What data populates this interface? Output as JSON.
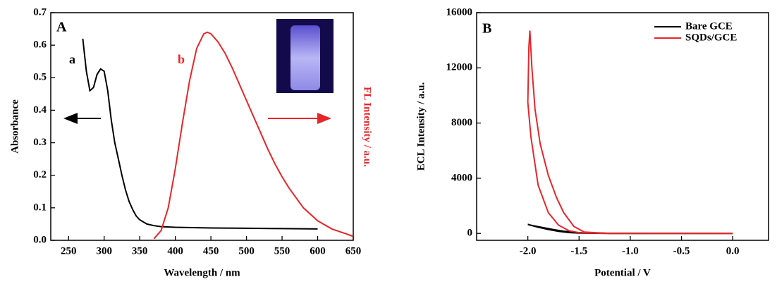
{
  "chart_data": [
    {
      "type": "line",
      "xlabel": "Wavelength / nm",
      "ylabel": "Absorbance",
      "y2label": "FL Intensity / a.u.",
      "annotations": [
        "A",
        "a",
        "b"
      ],
      "xlim": [
        225,
        650
      ],
      "ylim": [
        0,
        0.7
      ],
      "xticks": [
        250,
        300,
        350,
        400,
        450,
        500,
        550,
        600,
        650
      ],
      "yticks": [
        {
          "value": 0,
          "label": "0.0"
        },
        0.1,
        0.2,
        0.3,
        0.4,
        0.5,
        0.6,
        0.7
      ],
      "series": [
        {
          "color": "#000000",
          "x": [
            270,
            275,
            280,
            285,
            290,
            295,
            300,
            305,
            310,
            315,
            320,
            325,
            330,
            335,
            340,
            345,
            350,
            360,
            370,
            380,
            400,
            450,
            500,
            550,
            600
          ],
          "values": [
            0.62,
            0.52,
            0.46,
            0.47,
            0.51,
            0.527,
            0.52,
            0.46,
            0.37,
            0.3,
            0.25,
            0.2,
            0.155,
            0.12,
            0.095,
            0.075,
            0.063,
            0.05,
            0.045,
            0.042,
            0.04,
            0.038,
            0.037,
            0.036,
            0.035
          ]
        },
        {
          "color": "#e8262a",
          "x": [
            370,
            380,
            390,
            400,
            410,
            420,
            430,
            440,
            445,
            450,
            460,
            470,
            480,
            490,
            500,
            510,
            520,
            530,
            540,
            550,
            560,
            580,
            600,
            620,
            640,
            650
          ],
          "values": [
            0.005,
            0.03,
            0.1,
            0.22,
            0.36,
            0.49,
            0.59,
            0.635,
            0.64,
            0.635,
            0.61,
            0.575,
            0.53,
            0.48,
            0.43,
            0.38,
            0.33,
            0.28,
            0.235,
            0.195,
            0.16,
            0.1,
            0.06,
            0.035,
            0.02,
            0.012
          ]
        }
      ]
    },
    {
      "type": "line",
      "xlabel": "Potential / V",
      "ylabel": "ECL Intensity / a.u.",
      "annotations": [
        "B"
      ],
      "xlim": [
        -2.5,
        0.35
      ],
      "ylim": [
        -500,
        16000
      ],
      "xticks": [
        {
          "value": -2,
          "label": "-2.0"
        },
        -1.5,
        {
          "value": -1,
          "label": "-1.0"
        },
        -0.5,
        {
          "value": 0,
          "label": "0.0"
        }
      ],
      "yticks": [
        0,
        4000,
        8000,
        12000,
        16000
      ],
      "legend": "upper right",
      "series": [
        {
          "name": "Bare GCE",
          "color": "#000000",
          "x": [
            0,
            -1.2,
            -1.5,
            -1.6,
            -1.7,
            -1.8,
            -1.9,
            -2.0,
            -1.95,
            -1.85,
            -1.75,
            -1.65,
            -1.5,
            -1.2,
            0
          ],
          "values": [
            0,
            0,
            20,
            60,
            150,
            280,
            450,
            650,
            560,
            420,
            280,
            160,
            60,
            10,
            0
          ]
        },
        {
          "name": "SQDs/GCE",
          "color": "#e8262a",
          "x": [
            0,
            -1.2,
            -1.5,
            -1.6,
            -1.7,
            -1.8,
            -1.9,
            -1.97,
            -2.0,
            -1.99,
            -1.98,
            -1.96,
            -1.93,
            -1.88,
            -1.8,
            -1.72,
            -1.65,
            -1.55,
            -1.45,
            -1.2,
            0
          ],
          "values": [
            0,
            0,
            50,
            200,
            600,
            1500,
            3500,
            7000,
            9500,
            13500,
            14700,
            12000,
            9000,
            6500,
            4200,
            2600,
            1500,
            500,
            100,
            0,
            0
          ]
        }
      ]
    }
  ]
}
